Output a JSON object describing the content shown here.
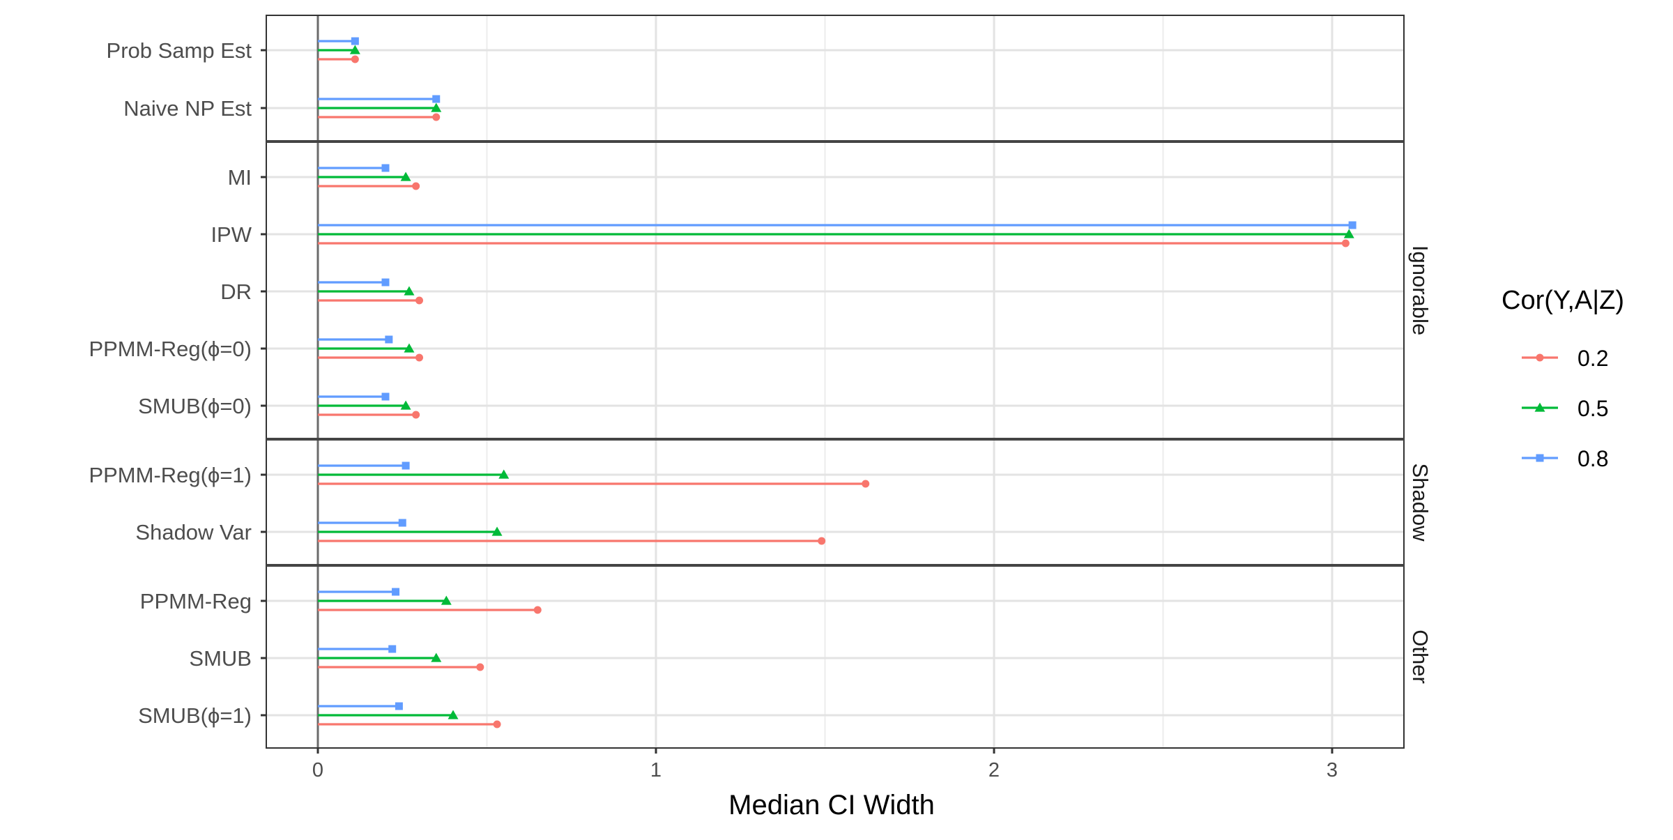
{
  "chart_data": {
    "type": "bar",
    "orientation": "horizontal",
    "style": "lollipop",
    "xlabel": "Median CI Width",
    "ylabel": "",
    "xlim": [
      -0.15,
      3.22
    ],
    "x_ticks": [
      0,
      1,
      2,
      3
    ],
    "x_tick_labels": [
      "0",
      "1",
      "2",
      "3"
    ],
    "grid": true,
    "legend": {
      "title": "Cor(Y,A|Z)",
      "placement": "right"
    },
    "series": [
      {
        "name": "0.2",
        "color": "#F8766D",
        "marker": "circle"
      },
      {
        "name": "0.5",
        "color": "#00BA38",
        "marker": "triangle"
      },
      {
        "name": "0.8",
        "color": "#619CFF",
        "marker": "square"
      }
    ],
    "panels": [
      {
        "label": "",
        "categories": [
          {
            "label": "Prob Samp Est",
            "values": [
              0.11,
              0.11,
              0.11
            ]
          },
          {
            "label": "Naive NP Est",
            "values": [
              0.35,
              0.35,
              0.35
            ]
          }
        ]
      },
      {
        "label": "Ignorable",
        "categories": [
          {
            "label": "MI",
            "values": [
              0.29,
              0.26,
              0.2
            ]
          },
          {
            "label": "IPW",
            "values": [
              3.04,
              3.05,
              3.06
            ]
          },
          {
            "label": "DR",
            "values": [
              0.3,
              0.27,
              0.2
            ]
          },
          {
            "label": "PPMM-Reg(ϕ=0)",
            "values": [
              0.3,
              0.27,
              0.21
            ]
          },
          {
            "label": "SMUB(ϕ=0)",
            "values": [
              0.29,
              0.26,
              0.2
            ]
          }
        ]
      },
      {
        "label": "Shadow",
        "categories": [
          {
            "label": "PPMM-Reg(ϕ=1)",
            "values": [
              1.62,
              0.55,
              0.26
            ]
          },
          {
            "label": "Shadow Var",
            "values": [
              1.49,
              0.53,
              0.25
            ]
          }
        ]
      },
      {
        "label": "Other",
        "categories": [
          {
            "label": "PPMM-Reg",
            "values": [
              0.65,
              0.38,
              0.23
            ]
          },
          {
            "label": "SMUB",
            "values": [
              0.48,
              0.35,
              0.22
            ]
          },
          {
            "label": "SMUB(ϕ=1)",
            "values": [
              0.53,
              0.4,
              0.24
            ]
          }
        ]
      }
    ]
  }
}
